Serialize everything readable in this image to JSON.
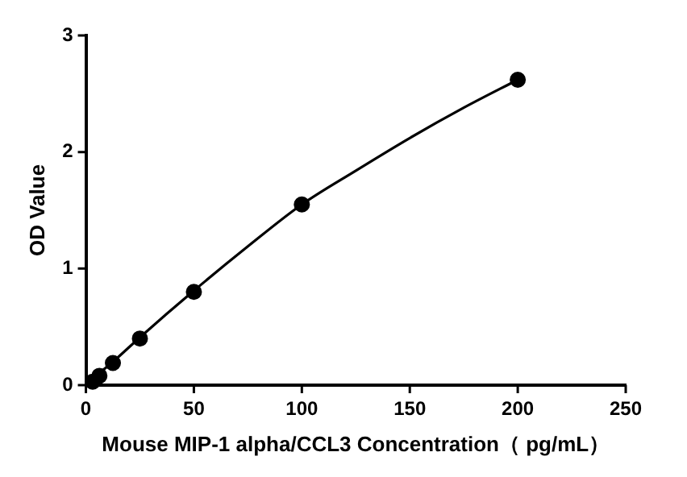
{
  "chart_data": {
    "type": "scatter",
    "xlabel": "Mouse MIP-1 alpha/CCL3 Concentration（ pg/mL）",
    "ylabel": "OD Value",
    "xlim": [
      0,
      250
    ],
    "xticks": [
      0,
      50,
      100,
      150,
      200,
      250
    ],
    "ylim": [
      0,
      3
    ],
    "yticks": [
      0,
      1,
      2,
      3
    ],
    "grid": false,
    "legend": false,
    "series": [
      {
        "type": "scatter",
        "color": "#000000",
        "marker": "circle",
        "x": [
          3.13,
          6.25,
          12.5,
          25,
          50,
          100,
          200
        ],
        "values": [
          0.03,
          0.08,
          0.19,
          0.4,
          0.8,
          1.55,
          2.62
        ]
      },
      {
        "type": "line",
        "color": "#000000",
        "marker": "none",
        "line_style": "solid",
        "x": [
          0,
          12.5,
          25,
          50,
          75,
          100,
          125,
          150,
          175,
          200
        ],
        "values": [
          0.01,
          0.2,
          0.41,
          0.81,
          1.19,
          1.55,
          1.84,
          2.12,
          2.38,
          2.62
        ]
      }
    ]
  }
}
